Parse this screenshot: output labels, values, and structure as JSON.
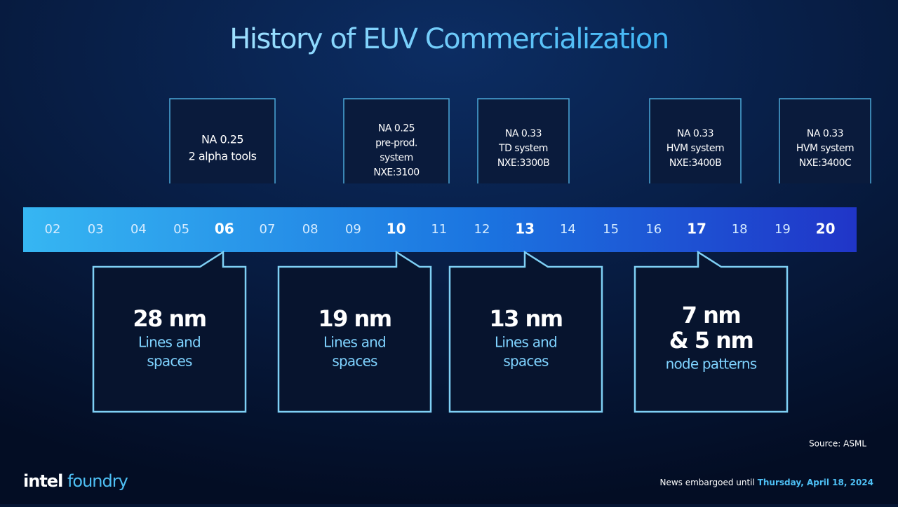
{
  "header": {
    "title": "History of EUV Commercialization"
  },
  "milestones": [
    {
      "lines": [
        "NA 0.25",
        "2 alpha tools"
      ]
    },
    {
      "lines": [
        "NA 0.25",
        "pre-prod.",
        "system",
        "NXE:3100"
      ]
    },
    {
      "lines": [
        "NA 0.33",
        "TD system",
        "NXE:3300B"
      ]
    },
    {
      "lines": [
        "NA 0.33",
        "HVM system",
        "NXE:3400B"
      ]
    },
    {
      "lines": [
        "NA 0.33",
        "HVM system",
        "NXE:3400C"
      ]
    }
  ],
  "timeline": {
    "years": [
      "02",
      "03",
      "04",
      "05",
      "06",
      "07",
      "08",
      "09",
      "10",
      "11",
      "12",
      "13",
      "14",
      "15",
      "16",
      "17",
      "18",
      "19",
      "20"
    ]
  },
  "callouts": [
    {
      "headline": [
        "28 nm"
      ],
      "detail": [
        "Lines and",
        "spaces"
      ]
    },
    {
      "headline": [
        "19 nm"
      ],
      "detail": [
        "Lines and",
        "spaces"
      ]
    },
    {
      "headline": [
        "13 nm"
      ],
      "detail": [
        "Lines and",
        "spaces"
      ]
    },
    {
      "headline": [
        "7 nm",
        "& 5 nm"
      ],
      "detail": [
        "node patterns"
      ]
    }
  ],
  "footer": {
    "source": "Source: ASML",
    "logo": [
      "intel",
      "foundry"
    ],
    "embargo": "News embargoed until",
    "date": "Thursday, April 18, 2024"
  }
}
